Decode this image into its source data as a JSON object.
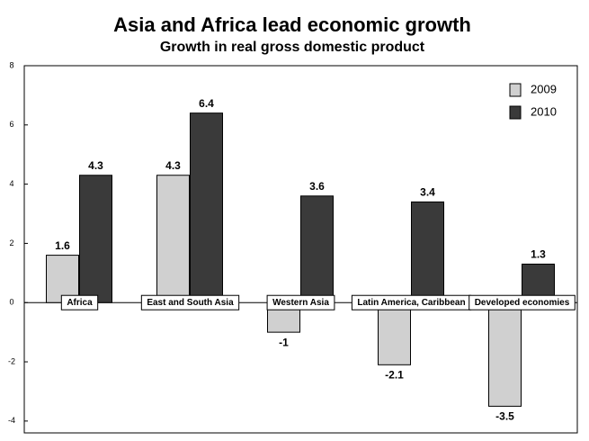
{
  "chart_data": {
    "type": "bar",
    "title": "Asia and Africa lead economic growth",
    "subtitle": "Growth in real gross domestic product",
    "categories": [
      "Africa",
      "East and South Asia",
      "Western Asia",
      "Latin America, Caribbean",
      "Developed economies"
    ],
    "series": [
      {
        "name": "2009",
        "color": "#d0d0d0",
        "values": [
          1.6,
          4.3,
          -1,
          -2.1,
          -3.5
        ]
      },
      {
        "name": "2010",
        "color": "#3a3a3a",
        "values": [
          4.3,
          6.4,
          3.6,
          3.4,
          1.3
        ]
      }
    ],
    "ylim": [
      -4.4,
      8
    ],
    "yticks": [
      -4,
      -2,
      0,
      2,
      4,
      6,
      8
    ],
    "legend": "top-right"
  }
}
